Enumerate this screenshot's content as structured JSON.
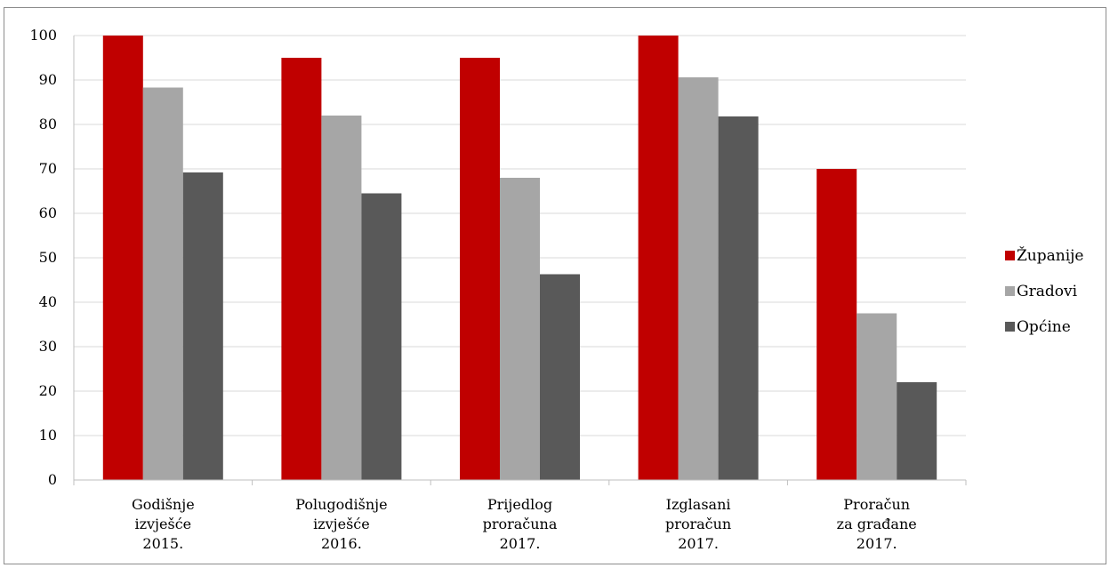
{
  "chart_data": {
    "type": "bar",
    "categories": [
      [
        "Godišnje",
        "izvješće",
        "2015."
      ],
      [
        "Polugodišnje",
        "izvješće",
        "2016."
      ],
      [
        "Prijedlog",
        "proračuna",
        "2017."
      ],
      [
        "Izglasani",
        "proračun",
        "2017."
      ],
      [
        "Proračun",
        "za građane",
        "2017."
      ]
    ],
    "series": [
      {
        "name": "Županije",
        "color": "#c00000",
        "values": [
          100,
          95,
          95,
          100,
          70
        ]
      },
      {
        "name": "Gradovi",
        "color": "#a6a6a6",
        "values": [
          88.3,
          82,
          68,
          90.6,
          37.5
        ]
      },
      {
        "name": "Općine",
        "color": "#595959",
        "values": [
          69.2,
          64.5,
          46.3,
          81.8,
          22
        ]
      }
    ],
    "ylim": [
      0,
      100
    ],
    "yticks": [
      0,
      10,
      20,
      30,
      40,
      50,
      60,
      70,
      80,
      90,
      100
    ],
    "grid": true,
    "legend": "right",
    "title": "",
    "xlabel": "",
    "ylabel": ""
  }
}
